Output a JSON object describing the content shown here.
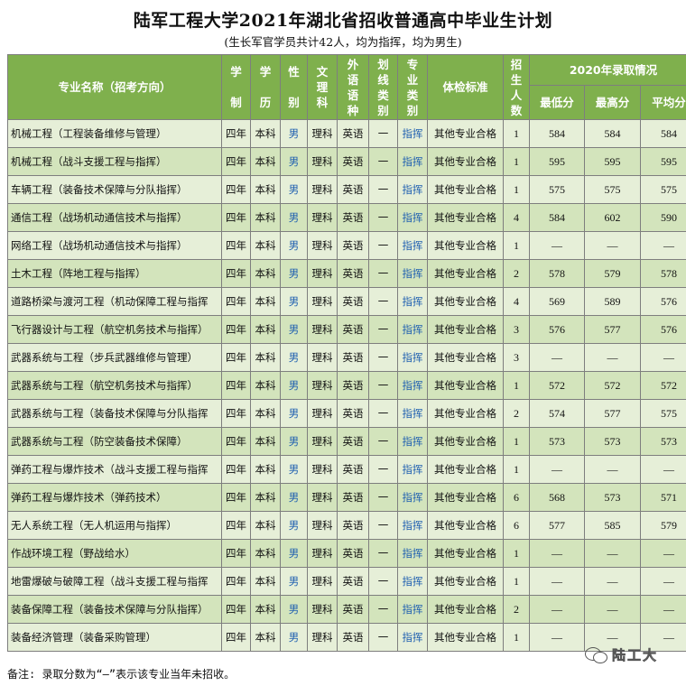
{
  "title": "陆军工程大学2021年湖北省招收普通高中毕业生计划",
  "subtitle": "(生长军官学员共计42人，均为指挥，均为男生)",
  "headers": {
    "major": "专业名称（招考方向）",
    "duration": [
      "学",
      "制"
    ],
    "degree": [
      "学",
      "历"
    ],
    "gender": [
      "性",
      "别"
    ],
    "subject": [
      "文",
      "理",
      "科"
    ],
    "language": [
      "外",
      "语",
      "语",
      "种"
    ],
    "category": [
      "划",
      "线",
      "类",
      "别"
    ],
    "major_type": [
      "专",
      "业",
      "类",
      "别"
    ],
    "physical": "体检标准",
    "enroll": [
      "招",
      "生",
      "人",
      "数"
    ],
    "history_group": "2020年录取情况",
    "min": "最低分",
    "max": "最高分",
    "avg": "平均分"
  },
  "rows": [
    {
      "major": "机械工程（工程装备维修与管理）",
      "duration": "四年",
      "degree": "本科",
      "gender": "男",
      "subject": "理科",
      "language": "英语",
      "category": "一",
      "type": "指挥",
      "physical": "其他专业合格",
      "count": "1",
      "min": "584",
      "max": "584",
      "avg": "584"
    },
    {
      "major": "机械工程（战斗支援工程与指挥）",
      "duration": "四年",
      "degree": "本科",
      "gender": "男",
      "subject": "理科",
      "language": "英语",
      "category": "一",
      "type": "指挥",
      "physical": "其他专业合格",
      "count": "1",
      "min": "595",
      "max": "595",
      "avg": "595"
    },
    {
      "major": "车辆工程（装备技术保障与分队指挥）",
      "duration": "四年",
      "degree": "本科",
      "gender": "男",
      "subject": "理科",
      "language": "英语",
      "category": "一",
      "type": "指挥",
      "physical": "其他专业合格",
      "count": "1",
      "min": "575",
      "max": "575",
      "avg": "575"
    },
    {
      "major": "通信工程（战场机动通信技术与指挥）",
      "duration": "四年",
      "degree": "本科",
      "gender": "男",
      "subject": "理科",
      "language": "英语",
      "category": "一",
      "type": "指挥",
      "physical": "其他专业合格",
      "count": "4",
      "min": "584",
      "max": "602",
      "avg": "590"
    },
    {
      "major": "网络工程（战场机动通信技术与指挥）",
      "duration": "四年",
      "degree": "本科",
      "gender": "男",
      "subject": "理科",
      "language": "英语",
      "category": "一",
      "type": "指挥",
      "physical": "其他专业合格",
      "count": "1",
      "min": "—",
      "max": "—",
      "avg": "—"
    },
    {
      "major": "土木工程（阵地工程与指挥）",
      "duration": "四年",
      "degree": "本科",
      "gender": "男",
      "subject": "理科",
      "language": "英语",
      "category": "一",
      "type": "指挥",
      "physical": "其他专业合格",
      "count": "2",
      "min": "578",
      "max": "579",
      "avg": "578"
    },
    {
      "major": "道路桥梁与渡河工程（机动保障工程与指挥",
      "duration": "四年",
      "degree": "本科",
      "gender": "男",
      "subject": "理科",
      "language": "英语",
      "category": "一",
      "type": "指挥",
      "physical": "其他专业合格",
      "count": "4",
      "min": "569",
      "max": "589",
      "avg": "576"
    },
    {
      "major": "飞行器设计与工程（航空机务技术与指挥）",
      "duration": "四年",
      "degree": "本科",
      "gender": "男",
      "subject": "理科",
      "language": "英语",
      "category": "一",
      "type": "指挥",
      "physical": "其他专业合格",
      "count": "3",
      "min": "576",
      "max": "577",
      "avg": "576"
    },
    {
      "major": "武器系统与工程（步兵武器维修与管理）",
      "duration": "四年",
      "degree": "本科",
      "gender": "男",
      "subject": "理科",
      "language": "英语",
      "category": "一",
      "type": "指挥",
      "physical": "其他专业合格",
      "count": "3",
      "min": "—",
      "max": "—",
      "avg": "—"
    },
    {
      "major": "武器系统与工程（航空机务技术与指挥）",
      "duration": "四年",
      "degree": "本科",
      "gender": "男",
      "subject": "理科",
      "language": "英语",
      "category": "一",
      "type": "指挥",
      "physical": "其他专业合格",
      "count": "1",
      "min": "572",
      "max": "572",
      "avg": "572"
    },
    {
      "major": "武器系统与工程（装备技术保障与分队指挥",
      "duration": "四年",
      "degree": "本科",
      "gender": "男",
      "subject": "理科",
      "language": "英语",
      "category": "一",
      "type": "指挥",
      "physical": "其他专业合格",
      "count": "2",
      "min": "574",
      "max": "577",
      "avg": "575"
    },
    {
      "major": "武器系统与工程（防空装备技术保障）",
      "duration": "四年",
      "degree": "本科",
      "gender": "男",
      "subject": "理科",
      "language": "英语",
      "category": "一",
      "type": "指挥",
      "physical": "其他专业合格",
      "count": "1",
      "min": "573",
      "max": "573",
      "avg": "573"
    },
    {
      "major": "弹药工程与爆炸技术（战斗支援工程与指挥",
      "duration": "四年",
      "degree": "本科",
      "gender": "男",
      "subject": "理科",
      "language": "英语",
      "category": "一",
      "type": "指挥",
      "physical": "其他专业合格",
      "count": "1",
      "min": "—",
      "max": "—",
      "avg": "—"
    },
    {
      "major": "弹药工程与爆炸技术（弹药技术）",
      "duration": "四年",
      "degree": "本科",
      "gender": "男",
      "subject": "理科",
      "language": "英语",
      "category": "一",
      "type": "指挥",
      "physical": "其他专业合格",
      "count": "6",
      "min": "568",
      "max": "573",
      "avg": "571"
    },
    {
      "major": "无人系统工程（无人机运用与指挥）",
      "duration": "四年",
      "degree": "本科",
      "gender": "男",
      "subject": "理科",
      "language": "英语",
      "category": "一",
      "type": "指挥",
      "physical": "其他专业合格",
      "count": "6",
      "min": "577",
      "max": "585",
      "avg": "579"
    },
    {
      "major": "作战环境工程（野战给水）",
      "duration": "四年",
      "degree": "本科",
      "gender": "男",
      "subject": "理科",
      "language": "英语",
      "category": "一",
      "type": "指挥",
      "physical": "其他专业合格",
      "count": "1",
      "min": "—",
      "max": "—",
      "avg": "—"
    },
    {
      "major": "地雷爆破与破障工程（战斗支援工程与指挥",
      "duration": "四年",
      "degree": "本科",
      "gender": "男",
      "subject": "理科",
      "language": "英语",
      "category": "一",
      "type": "指挥",
      "physical": "其他专业合格",
      "count": "1",
      "min": "—",
      "max": "—",
      "avg": "—"
    },
    {
      "major": "装备保障工程（装备技术保障与分队指挥）",
      "duration": "四年",
      "degree": "本科",
      "gender": "男",
      "subject": "理科",
      "language": "英语",
      "category": "一",
      "type": "指挥",
      "physical": "其他专业合格",
      "count": "2",
      "min": "—",
      "max": "—",
      "avg": "—"
    },
    {
      "major": "装备经济管理（装备采购管理）",
      "duration": "四年",
      "degree": "本科",
      "gender": "男",
      "subject": "理科",
      "language": "英语",
      "category": "一",
      "type": "指挥",
      "physical": "其他专业合格",
      "count": "1",
      "min": "—",
      "max": "—",
      "avg": "—"
    }
  ],
  "note": "备注: 录取分数为“—”表示该专业当年未招收。",
  "watermark": "陆工大"
}
